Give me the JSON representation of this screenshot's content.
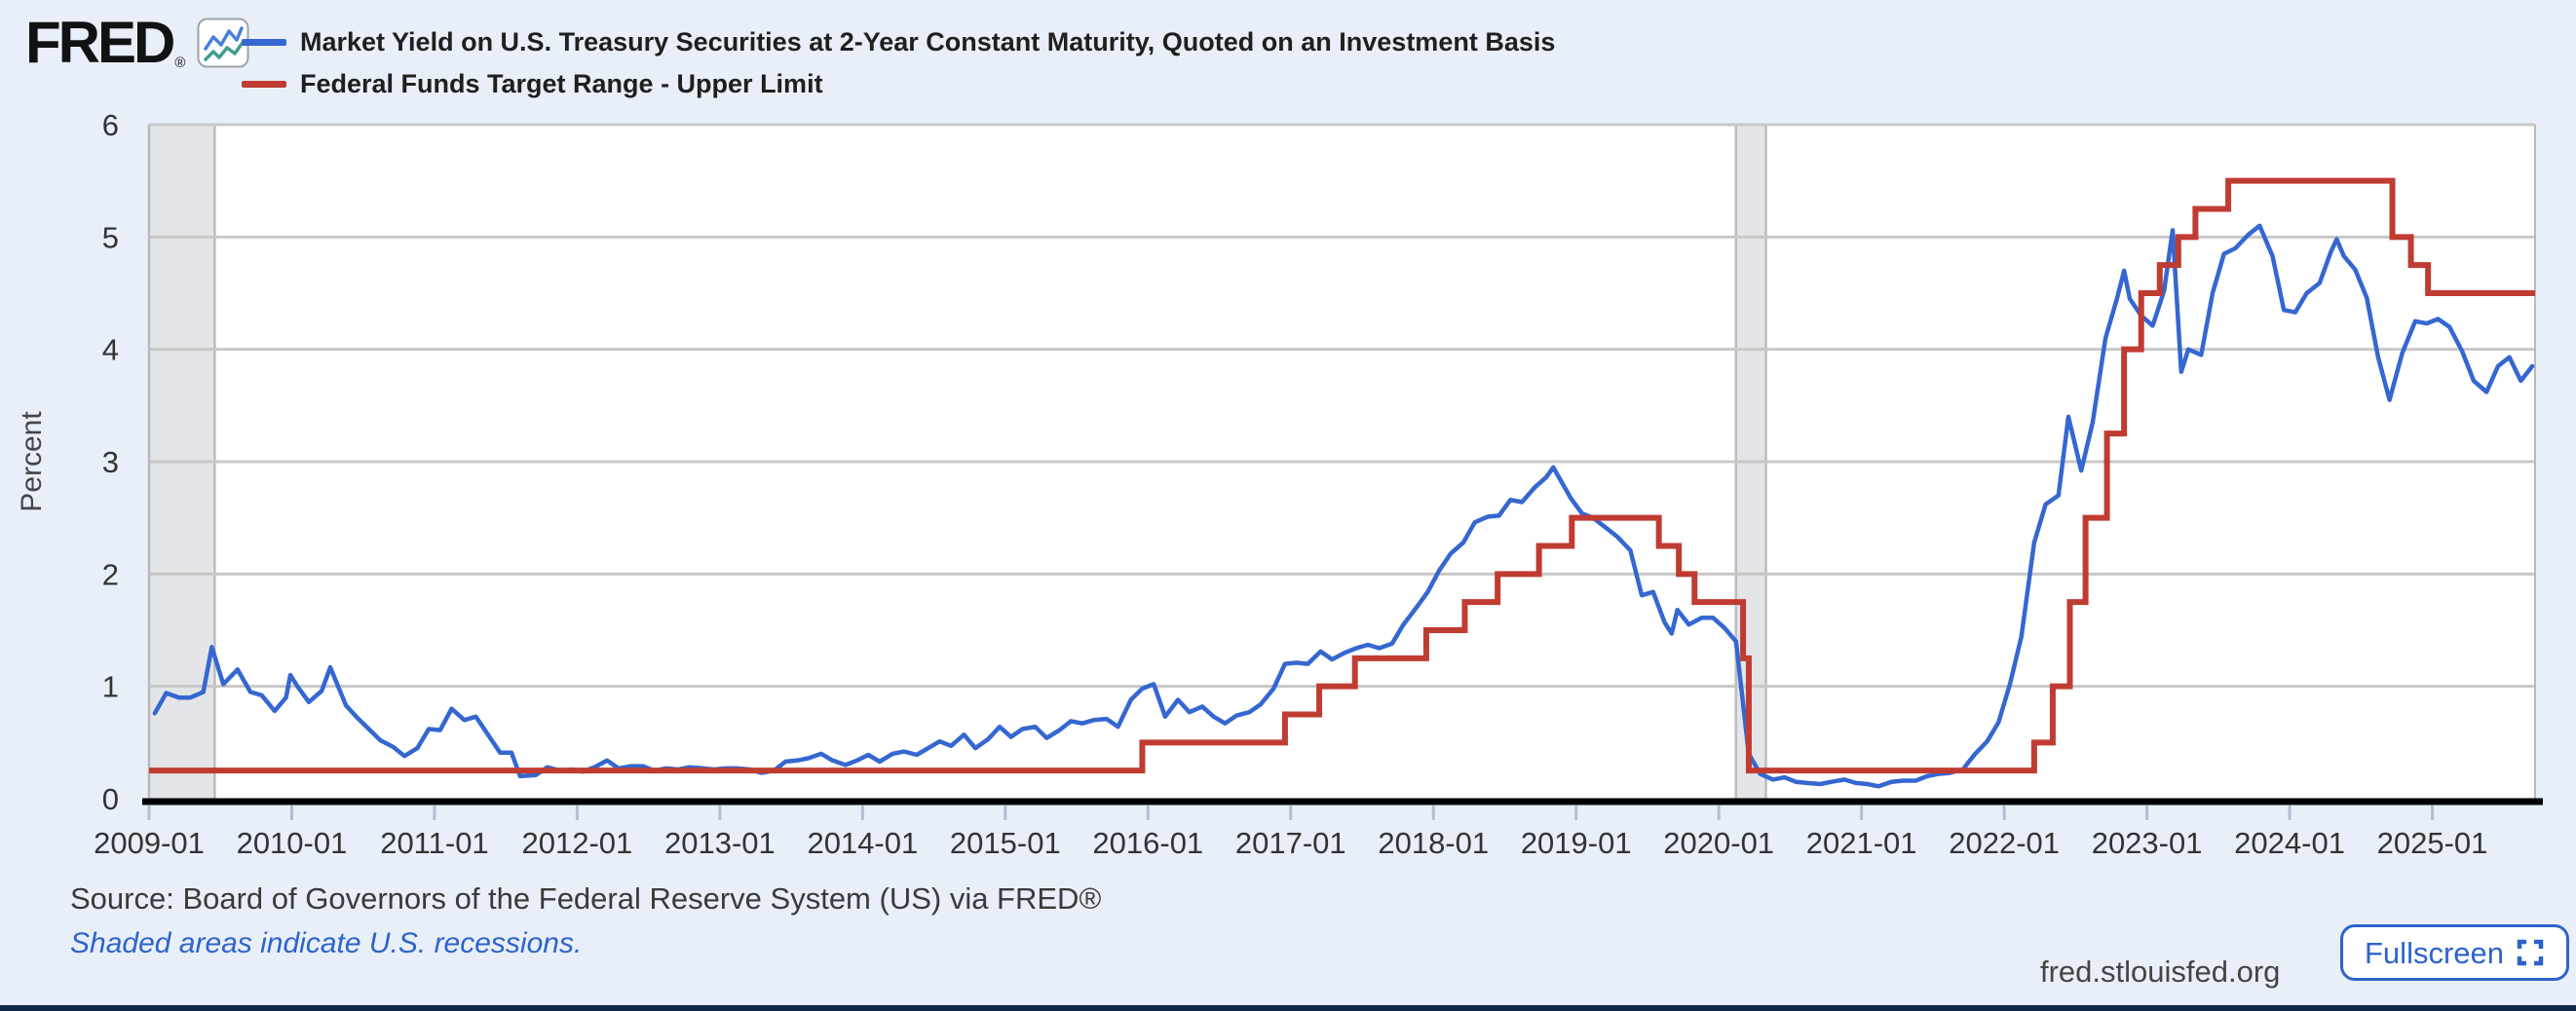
{
  "header": {
    "logo": {
      "text": "FRED",
      "registered": "®"
    },
    "legend": [
      {
        "label": "Market Yield on U.S. Treasury Securities at 2-Year Constant Maturity, Quoted on an Investment Basis",
        "color": "#3567D1"
      },
      {
        "label": "Federal Funds Target Range - Upper Limit",
        "color": "#C03B31"
      }
    ]
  },
  "footer": {
    "source": "Source: Board of Governors of the Federal Reserve System (US) via FRED®",
    "recession_note": "Shaded areas indicate U.S. recessions.",
    "site": "fred.stlouisfed.org",
    "fullscreen_label": "Fullscreen",
    "fullscreen_icon": "expand-icon"
  },
  "colors": {
    "page_background": "#E9EFF8",
    "plot_background": "#FFFFFF",
    "gridline": "#C8C8C8",
    "plot_border": "#B9B9B9",
    "recession_band": "#E4E5E8",
    "recession_band_edge": "#B9BCC2",
    "axis_line": "#000000",
    "tick_mark": "#B3BDD4",
    "tick_text": "#333333",
    "axis_title_text": "#444444",
    "treasury_line": "#3567D1",
    "fed_funds_line": "#C03B31",
    "link_blue": "#2D63CC",
    "footer_bar": "#12284B"
  },
  "chart_data": {
    "type": "line",
    "title": "",
    "xlabel": "",
    "ylabel": "Percent",
    "ylim": [
      0,
      6
    ],
    "y_ticks": [
      0,
      1,
      2,
      3,
      4,
      5,
      6
    ],
    "x_range": [
      2009.0,
      2025.72
    ],
    "x_ticks": [
      {
        "t": 2009.0,
        "label": "2009-01"
      },
      {
        "t": 2010.0,
        "label": "2010-01"
      },
      {
        "t": 2011.0,
        "label": "2011-01"
      },
      {
        "t": 2012.0,
        "label": "2012-01"
      },
      {
        "t": 2013.0,
        "label": "2013-01"
      },
      {
        "t": 2014.0,
        "label": "2014-01"
      },
      {
        "t": 2015.0,
        "label": "2015-01"
      },
      {
        "t": 2016.0,
        "label": "2016-01"
      },
      {
        "t": 2017.0,
        "label": "2017-01"
      },
      {
        "t": 2018.0,
        "label": "2018-01"
      },
      {
        "t": 2019.0,
        "label": "2019-01"
      },
      {
        "t": 2020.0,
        "label": "2020-01"
      },
      {
        "t": 2021.0,
        "label": "2021-01"
      },
      {
        "t": 2022.0,
        "label": "2022-01"
      },
      {
        "t": 2023.0,
        "label": "2023-01"
      },
      {
        "t": 2024.0,
        "label": "2024-01"
      },
      {
        "t": 2025.0,
        "label": "2025-01"
      }
    ],
    "grid": "horizontal-only",
    "legend_position": "top-left",
    "recessions": [
      {
        "start": 2009.0,
        "end": 2009.46
      },
      {
        "start": 2020.12,
        "end": 2020.33
      }
    ],
    "series": [
      {
        "name": "Market Yield on U.S. Treasury Securities at 2-Year Constant Maturity, Quoted on an Investment Basis",
        "type": "line",
        "color": "#3567D1",
        "stroke_width": 4.5,
        "points": [
          [
            2009.04,
            0.76
          ],
          [
            2009.12,
            0.94
          ],
          [
            2009.21,
            0.9
          ],
          [
            2009.29,
            0.9
          ],
          [
            2009.38,
            0.95
          ],
          [
            2009.44,
            1.35
          ],
          [
            2009.52,
            1.02
          ],
          [
            2009.62,
            1.15
          ],
          [
            2009.71,
            0.95
          ],
          [
            2009.79,
            0.92
          ],
          [
            2009.88,
            0.78
          ],
          [
            2009.96,
            0.9
          ],
          [
            2009.99,
            1.1
          ],
          [
            2010.04,
            1.0
          ],
          [
            2010.12,
            0.86
          ],
          [
            2010.21,
            0.96
          ],
          [
            2010.27,
            1.17
          ],
          [
            2010.38,
            0.83
          ],
          [
            2010.46,
            0.72
          ],
          [
            2010.54,
            0.62
          ],
          [
            2010.62,
            0.52
          ],
          [
            2010.71,
            0.46
          ],
          [
            2010.79,
            0.38
          ],
          [
            2010.88,
            0.45
          ],
          [
            2010.96,
            0.62
          ],
          [
            2011.04,
            0.61
          ],
          [
            2011.12,
            0.8
          ],
          [
            2011.21,
            0.7
          ],
          [
            2011.29,
            0.73
          ],
          [
            2011.38,
            0.56
          ],
          [
            2011.46,
            0.41
          ],
          [
            2011.54,
            0.41
          ],
          [
            2011.6,
            0.2
          ],
          [
            2011.71,
            0.21
          ],
          [
            2011.79,
            0.28
          ],
          [
            2011.88,
            0.25
          ],
          [
            2011.96,
            0.26
          ],
          [
            2012.04,
            0.24
          ],
          [
            2012.12,
            0.28
          ],
          [
            2012.21,
            0.34
          ],
          [
            2012.29,
            0.27
          ],
          [
            2012.38,
            0.29
          ],
          [
            2012.46,
            0.29
          ],
          [
            2012.54,
            0.25
          ],
          [
            2012.62,
            0.27
          ],
          [
            2012.71,
            0.26
          ],
          [
            2012.79,
            0.28
          ],
          [
            2012.88,
            0.27
          ],
          [
            2012.96,
            0.26
          ],
          [
            2013.04,
            0.27
          ],
          [
            2013.12,
            0.27
          ],
          [
            2013.21,
            0.26
          ],
          [
            2013.29,
            0.23
          ],
          [
            2013.38,
            0.25
          ],
          [
            2013.46,
            0.33
          ],
          [
            2013.54,
            0.34
          ],
          [
            2013.62,
            0.36
          ],
          [
            2013.71,
            0.4
          ],
          [
            2013.79,
            0.34
          ],
          [
            2013.88,
            0.3
          ],
          [
            2013.96,
            0.34
          ],
          [
            2014.04,
            0.39
          ],
          [
            2014.12,
            0.33
          ],
          [
            2014.21,
            0.4
          ],
          [
            2014.29,
            0.42
          ],
          [
            2014.38,
            0.39
          ],
          [
            2014.46,
            0.45
          ],
          [
            2014.54,
            0.51
          ],
          [
            2014.62,
            0.47
          ],
          [
            2014.71,
            0.57
          ],
          [
            2014.79,
            0.45
          ],
          [
            2014.88,
            0.53
          ],
          [
            2014.96,
            0.64
          ],
          [
            2015.04,
            0.55
          ],
          [
            2015.12,
            0.62
          ],
          [
            2015.21,
            0.64
          ],
          [
            2015.29,
            0.54
          ],
          [
            2015.38,
            0.61
          ],
          [
            2015.46,
            0.69
          ],
          [
            2015.54,
            0.67
          ],
          [
            2015.62,
            0.7
          ],
          [
            2015.71,
            0.71
          ],
          [
            2015.79,
            0.64
          ],
          [
            2015.88,
            0.88
          ],
          [
            2015.96,
            0.98
          ],
          [
            2016.04,
            1.02
          ],
          [
            2016.12,
            0.73
          ],
          [
            2016.21,
            0.88
          ],
          [
            2016.29,
            0.77
          ],
          [
            2016.38,
            0.82
          ],
          [
            2016.46,
            0.73
          ],
          [
            2016.54,
            0.67
          ],
          [
            2016.62,
            0.74
          ],
          [
            2016.71,
            0.77
          ],
          [
            2016.79,
            0.84
          ],
          [
            2016.88,
            0.98
          ],
          [
            2016.96,
            1.2
          ],
          [
            2017.04,
            1.21
          ],
          [
            2017.12,
            1.2
          ],
          [
            2017.21,
            1.31
          ],
          [
            2017.29,
            1.24
          ],
          [
            2017.38,
            1.3
          ],
          [
            2017.46,
            1.34
          ],
          [
            2017.54,
            1.37
          ],
          [
            2017.62,
            1.34
          ],
          [
            2017.71,
            1.38
          ],
          [
            2017.79,
            1.55
          ],
          [
            2017.88,
            1.7
          ],
          [
            2017.96,
            1.84
          ],
          [
            2018.04,
            2.03
          ],
          [
            2018.12,
            2.18
          ],
          [
            2018.21,
            2.28
          ],
          [
            2018.29,
            2.46
          ],
          [
            2018.38,
            2.51
          ],
          [
            2018.46,
            2.52
          ],
          [
            2018.54,
            2.66
          ],
          [
            2018.62,
            2.64
          ],
          [
            2018.71,
            2.77
          ],
          [
            2018.79,
            2.86
          ],
          [
            2018.84,
            2.95
          ],
          [
            2018.88,
            2.86
          ],
          [
            2018.96,
            2.68
          ],
          [
            2019.04,
            2.54
          ],
          [
            2019.12,
            2.5
          ],
          [
            2019.21,
            2.41
          ],
          [
            2019.29,
            2.33
          ],
          [
            2019.38,
            2.21
          ],
          [
            2019.46,
            1.81
          ],
          [
            2019.54,
            1.84
          ],
          [
            2019.62,
            1.57
          ],
          [
            2019.67,
            1.47
          ],
          [
            2019.71,
            1.68
          ],
          [
            2019.79,
            1.55
          ],
          [
            2019.88,
            1.61
          ],
          [
            2019.96,
            1.61
          ],
          [
            2020.04,
            1.52
          ],
          [
            2020.12,
            1.4
          ],
          [
            2020.21,
            0.4
          ],
          [
            2020.29,
            0.22
          ],
          [
            2020.38,
            0.17
          ],
          [
            2020.46,
            0.19
          ],
          [
            2020.54,
            0.15
          ],
          [
            2020.62,
            0.14
          ],
          [
            2020.71,
            0.13
          ],
          [
            2020.79,
            0.15
          ],
          [
            2020.88,
            0.17
          ],
          [
            2020.96,
            0.14
          ],
          [
            2021.04,
            0.13
          ],
          [
            2021.12,
            0.11
          ],
          [
            2021.21,
            0.15
          ],
          [
            2021.29,
            0.16
          ],
          [
            2021.38,
            0.16
          ],
          [
            2021.46,
            0.2
          ],
          [
            2021.54,
            0.22
          ],
          [
            2021.62,
            0.23
          ],
          [
            2021.71,
            0.26
          ],
          [
            2021.79,
            0.39
          ],
          [
            2021.88,
            0.51
          ],
          [
            2021.96,
            0.68
          ],
          [
            2022.04,
            1.02
          ],
          [
            2022.12,
            1.44
          ],
          [
            2022.21,
            2.28
          ],
          [
            2022.29,
            2.62
          ],
          [
            2022.38,
            2.7
          ],
          [
            2022.45,
            3.4
          ],
          [
            2022.54,
            2.92
          ],
          [
            2022.62,
            3.35
          ],
          [
            2022.71,
            4.1
          ],
          [
            2022.79,
            4.45
          ],
          [
            2022.84,
            4.7
          ],
          [
            2022.88,
            4.45
          ],
          [
            2022.96,
            4.3
          ],
          [
            2023.04,
            4.21
          ],
          [
            2023.12,
            4.52
          ],
          [
            2023.18,
            5.06
          ],
          [
            2023.24,
            3.8
          ],
          [
            2023.29,
            4.0
          ],
          [
            2023.38,
            3.95
          ],
          [
            2023.46,
            4.5
          ],
          [
            2023.54,
            4.85
          ],
          [
            2023.62,
            4.9
          ],
          [
            2023.71,
            5.02
          ],
          [
            2023.79,
            5.1
          ],
          [
            2023.88,
            4.83
          ],
          [
            2023.96,
            4.35
          ],
          [
            2024.04,
            4.33
          ],
          [
            2024.12,
            4.5
          ],
          [
            2024.21,
            4.59
          ],
          [
            2024.29,
            4.87
          ],
          [
            2024.33,
            4.98
          ],
          [
            2024.38,
            4.83
          ],
          [
            2024.46,
            4.71
          ],
          [
            2024.54,
            4.46
          ],
          [
            2024.62,
            3.93
          ],
          [
            2024.7,
            3.55
          ],
          [
            2024.79,
            3.97
          ],
          [
            2024.88,
            4.25
          ],
          [
            2024.96,
            4.23
          ],
          [
            2025.04,
            4.27
          ],
          [
            2025.12,
            4.2
          ],
          [
            2025.21,
            3.98
          ],
          [
            2025.29,
            3.72
          ],
          [
            2025.38,
            3.62
          ],
          [
            2025.46,
            3.85
          ],
          [
            2025.54,
            3.93
          ],
          [
            2025.62,
            3.72
          ],
          [
            2025.7,
            3.85
          ]
        ]
      },
      {
        "name": "Federal Funds Target Range - Upper Limit",
        "type": "step",
        "color": "#C03B31",
        "stroke_width": 6,
        "points": [
          [
            2009.0,
            0.25
          ],
          [
            2015.96,
            0.5
          ],
          [
            2016.96,
            0.75
          ],
          [
            2017.2,
            1.0
          ],
          [
            2017.45,
            1.25
          ],
          [
            2017.95,
            1.5
          ],
          [
            2018.22,
            1.75
          ],
          [
            2018.45,
            2.0
          ],
          [
            2018.74,
            2.25
          ],
          [
            2018.97,
            2.5
          ],
          [
            2019.58,
            2.25
          ],
          [
            2019.72,
            2.0
          ],
          [
            2019.83,
            1.75
          ],
          [
            2020.17,
            1.25
          ],
          [
            2020.21,
            0.25
          ],
          [
            2022.21,
            0.5
          ],
          [
            2022.34,
            1.0
          ],
          [
            2022.46,
            1.75
          ],
          [
            2022.57,
            2.5
          ],
          [
            2022.72,
            3.25
          ],
          [
            2022.84,
            4.0
          ],
          [
            2022.96,
            4.5
          ],
          [
            2023.09,
            4.75
          ],
          [
            2023.22,
            5.0
          ],
          [
            2023.34,
            5.25
          ],
          [
            2023.57,
            5.5
          ],
          [
            2024.72,
            5.0
          ],
          [
            2024.85,
            4.75
          ],
          [
            2024.97,
            4.5
          ],
          [
            2025.72,
            4.5
          ]
        ]
      }
    ]
  }
}
